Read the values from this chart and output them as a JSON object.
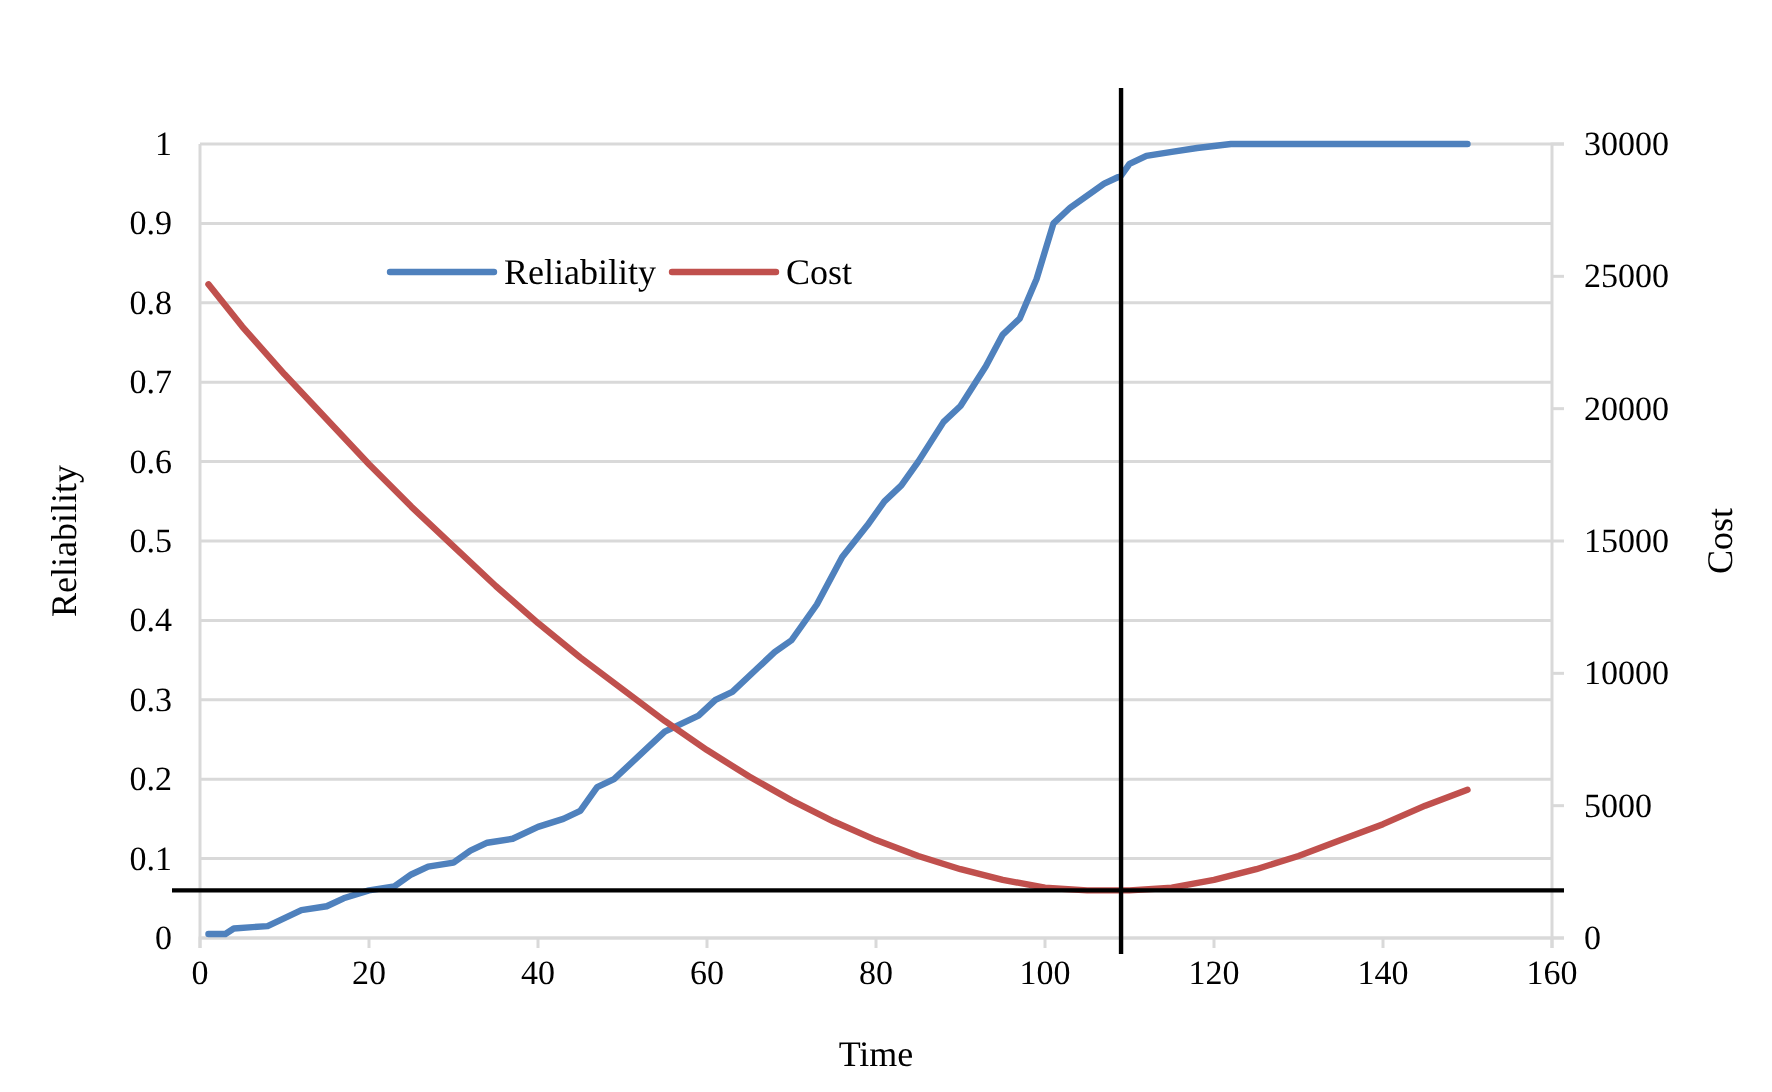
{
  "chart_data": {
    "type": "line",
    "xlabel": "Time",
    "ylabel": "Reliability",
    "y2label": "Cost",
    "xlim": [
      0,
      160
    ],
    "xticks": [
      0,
      20,
      40,
      60,
      80,
      100,
      120,
      140,
      160
    ],
    "ylim": [
      0,
      1
    ],
    "yticks": [
      0,
      0.1,
      0.2,
      0.3,
      0.4,
      0.5,
      0.6,
      0.7,
      0.8,
      0.9,
      1
    ],
    "y2lim": [
      0,
      30000
    ],
    "y2ticks": [
      0,
      5000,
      10000,
      15000,
      20000,
      25000,
      30000
    ],
    "grid": "y",
    "legend": "top left",
    "marker": "none",
    "line_style": "solid",
    "series": [
      {
        "name": "Reliability",
        "color": "#4f81bd",
        "x": [
          1,
          3,
          4,
          8,
          12,
          15,
          17,
          20,
          23,
          25,
          27,
          30,
          32,
          34,
          37,
          40,
          43,
          45,
          47,
          49,
          52,
          55,
          59,
          61,
          63,
          66,
          68,
          70,
          73,
          76,
          79,
          81,
          83,
          85,
          88,
          90,
          93,
          95,
          97,
          99,
          101,
          103,
          105,
          107,
          109,
          110,
          112,
          115,
          118,
          122,
          130,
          140,
          150
        ],
        "values": [
          0.005,
          0.005,
          0.012,
          0.015,
          0.035,
          0.04,
          0.05,
          0.06,
          0.065,
          0.08,
          0.09,
          0.095,
          0.11,
          0.12,
          0.125,
          0.14,
          0.15,
          0.16,
          0.19,
          0.2,
          0.23,
          0.26,
          0.28,
          0.3,
          0.31,
          0.34,
          0.36,
          0.375,
          0.42,
          0.48,
          0.52,
          0.55,
          0.57,
          0.6,
          0.65,
          0.67,
          0.72,
          0.76,
          0.78,
          0.83,
          0.9,
          0.92,
          0.935,
          0.95,
          0.96,
          0.975,
          0.985,
          0.99,
          0.995,
          1,
          1,
          1,
          1
        ]
      },
      {
        "name": "Cost",
        "color": "#c0504d",
        "axis": "y2",
        "x": [
          1,
          5,
          10,
          15,
          20,
          25,
          30,
          35,
          40,
          45,
          50,
          55,
          60,
          65,
          70,
          75,
          80,
          85,
          90,
          95,
          100,
          105,
          108,
          110,
          115,
          120,
          125,
          130,
          135,
          140,
          145,
          150
        ],
        "values": [
          24700,
          23100,
          21300,
          19600,
          17900,
          16300,
          14800,
          13300,
          11900,
          10600,
          9400,
          8200,
          7100,
          6100,
          5200,
          4400,
          3700,
          3100,
          2600,
          2200,
          1900,
          1800,
          1800,
          1800,
          1900,
          2200,
          2600,
          3100,
          3700,
          4300,
          5000,
          5600
        ]
      }
    ],
    "ref_lines": [
      {
        "axis": "y",
        "value": 0.06,
        "color": "#000000"
      },
      {
        "axis": "x",
        "value": 109,
        "color": "#000000"
      }
    ]
  }
}
